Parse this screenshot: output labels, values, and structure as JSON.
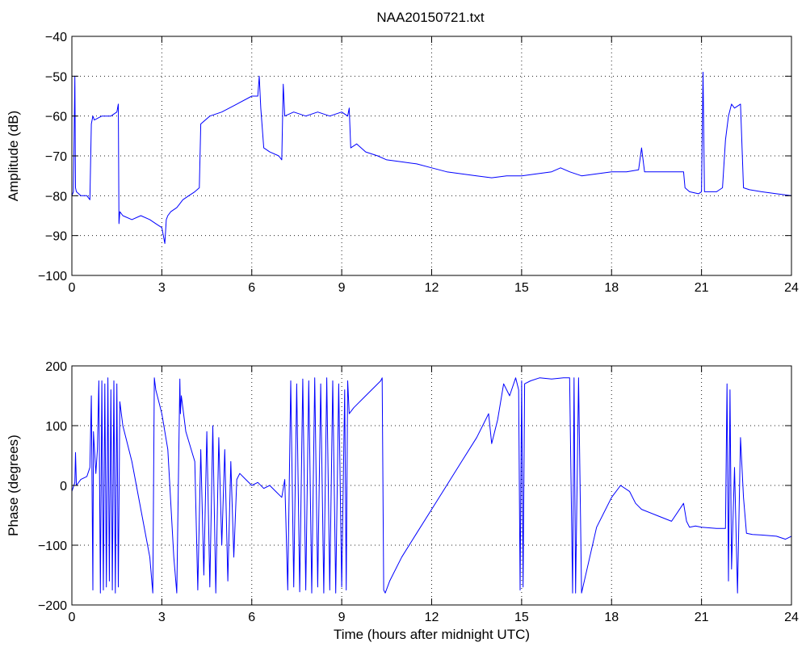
{
  "figure": {
    "title": "NAA20150721.txt"
  },
  "chart_data": [
    {
      "type": "line",
      "title": "NAA20150721.txt",
      "xlabel": "",
      "ylabel": "Amplitude (dB)",
      "xlim": [
        0,
        24
      ],
      "ylim": [
        -100,
        -40
      ],
      "xticks": [
        0,
        3,
        6,
        9,
        12,
        15,
        18,
        21,
        24
      ],
      "yticks": [
        -100,
        -90,
        -80,
        -70,
        -60,
        -50,
        -40
      ],
      "grid": true,
      "series_color": "#0000ff",
      "series": [
        {
          "x": [
            0,
            0.05,
            0.1,
            0.12,
            0.15,
            0.3,
            0.5,
            0.6,
            0.65,
            0.7,
            0.75,
            1.0,
            1.3,
            1.5,
            1.55,
            1.57,
            1.6,
            1.7,
            2.0,
            2.3,
            2.6,
            2.8,
            3.0,
            3.1,
            3.15,
            3.2,
            3.3,
            3.5,
            3.6,
            3.7,
            3.9,
            4.1,
            4.25,
            4.3,
            4.6,
            5.0,
            5.5,
            6.0,
            6.2,
            6.25,
            6.3,
            6.4,
            6.6,
            6.9,
            7.0,
            7.05,
            7.1,
            7.4,
            7.8,
            8.2,
            8.6,
            9.0,
            9.2,
            9.25,
            9.3,
            9.5,
            9.8,
            10.2,
            10.5,
            11.0,
            11.5,
            12.0,
            12.5,
            13.0,
            13.5,
            14.0,
            14.5,
            15.0,
            15.5,
            16.0,
            16.3,
            16.6,
            17.0,
            17.5,
            18.0,
            18.5,
            18.9,
            19.0,
            19.1,
            19.5,
            20.0,
            20.4,
            20.45,
            20.6,
            20.9,
            21.0,
            21.05,
            21.1,
            21.3,
            21.5,
            21.7,
            21.8,
            21.9,
            22.0,
            22.1,
            22.3,
            22.4,
            22.6,
            23.0,
            23.5,
            24.0
          ],
          "y": [
            -80,
            -79,
            -50,
            -78,
            -79,
            -80,
            -80,
            -81,
            -62,
            -60,
            -61,
            -60,
            -60,
            -59,
            -57,
            -87,
            -84,
            -85,
            -86,
            -85,
            -86,
            -87,
            -88,
            -92,
            -86,
            -85,
            -84,
            -83,
            -82,
            -81,
            -80,
            -79,
            -78,
            -62,
            -60,
            -59,
            -57,
            -55,
            -55,
            -50,
            -58,
            -68,
            -69,
            -70,
            -71,
            -52,
            -60,
            -59,
            -60,
            -59,
            -60,
            -59,
            -60,
            -58,
            -68,
            -67,
            -69,
            -70,
            -71,
            -71.5,
            -72,
            -73,
            -74,
            -74.5,
            -75,
            -75.5,
            -75,
            -75,
            -74.5,
            -74,
            -73,
            -74,
            -75,
            -74.5,
            -74,
            -74,
            -73.5,
            -68,
            -74,
            -74,
            -74,
            -74,
            -78,
            -79,
            -79.5,
            -79,
            -49,
            -79,
            -79,
            -79,
            -78,
            -66,
            -60,
            -57,
            -58,
            -57,
            -78,
            -78.5,
            -79,
            -79.5,
            -80
          ]
        }
      ]
    },
    {
      "type": "line",
      "title": "",
      "xlabel": "Time (hours after midnight UTC)",
      "ylabel": "Phase (degrees)",
      "xlim": [
        0,
        24
      ],
      "ylim": [
        -200,
        200
      ],
      "xticks": [
        0,
        3,
        6,
        9,
        12,
        15,
        18,
        21,
        24
      ],
      "yticks": [
        -200,
        -100,
        0,
        100,
        200
      ],
      "grid": true,
      "series_color": "#0000ff",
      "series": [
        {
          "x": [
            0,
            0.1,
            0.12,
            0.15,
            0.3,
            0.5,
            0.6,
            0.65,
            0.7,
            0.72,
            0.8,
            0.85,
            0.9,
            0.95,
            1.0,
            1.05,
            1.1,
            1.15,
            1.2,
            1.25,
            1.3,
            1.35,
            1.4,
            1.45,
            1.5,
            1.55,
            1.6,
            1.7,
            2.0,
            2.3,
            2.6,
            2.7,
            2.75,
            2.8,
            3.0,
            3.2,
            3.4,
            3.5,
            3.6,
            3.62,
            3.65,
            3.7,
            3.8,
            4.1,
            4.2,
            4.3,
            4.4,
            4.5,
            4.6,
            4.7,
            4.8,
            4.9,
            5.0,
            5.1,
            5.2,
            5.3,
            5.4,
            5.5,
            5.6,
            5.8,
            6.0,
            6.2,
            6.4,
            6.6,
            6.8,
            7.0,
            7.1,
            7.2,
            7.3,
            7.4,
            7.5,
            7.6,
            7.7,
            7.8,
            7.9,
            8.0,
            8.1,
            8.2,
            8.3,
            8.4,
            8.5,
            8.6,
            8.7,
            8.8,
            8.9,
            9.0,
            9.1,
            9.15,
            9.2,
            9.25,
            9.4,
            9.8,
            10.1,
            10.3,
            10.35,
            10.4,
            10.45,
            10.6,
            11.0,
            11.5,
            12.0,
            12.5,
            13.0,
            13.5,
            13.8,
            13.9,
            14.0,
            14.2,
            14.4,
            14.6,
            14.8,
            14.9,
            14.95,
            15.0,
            15.05,
            15.1,
            15.3,
            15.6,
            16.0,
            16.4,
            16.6,
            16.7,
            16.75,
            16.8,
            16.9,
            17.0,
            17.5,
            18.0,
            18.3,
            18.6,
            18.8,
            19.0,
            19.5,
            20.0,
            20.4,
            20.5,
            20.6,
            20.8,
            21.0,
            21.5,
            21.8,
            21.85,
            21.9,
            21.95,
            22.0,
            22.1,
            22.2,
            22.3,
            22.4,
            22.5,
            22.7,
            23.0,
            23.5,
            23.8,
            24.0
          ],
          "y": [
            -10,
            5,
            55,
            0,
            10,
            15,
            30,
            150,
            -175,
            90,
            20,
            60,
            175,
            -180,
            175,
            -175,
            170,
            -170,
            180,
            -160,
            160,
            -175,
            175,
            -180,
            170,
            -170,
            140,
            100,
            40,
            -40,
            -120,
            -180,
            180,
            160,
            120,
            60,
            -120,
            -180,
            178,
            120,
            150,
            130,
            90,
            40,
            -175,
            60,
            -150,
            90,
            -170,
            100,
            -180,
            80,
            -100,
            60,
            -160,
            40,
            -120,
            10,
            20,
            10,
            0,
            5,
            -5,
            0,
            -10,
            -20,
            10,
            -175,
            175,
            -170,
            170,
            -178,
            178,
            -175,
            175,
            -180,
            180,
            -170,
            170,
            -180,
            180,
            -175,
            175,
            -180,
            170,
            -170,
            160,
            -175,
            175,
            120,
            130,
            150,
            165,
            175,
            180,
            -175,
            -180,
            -160,
            -120,
            -80,
            -40,
            0,
            40,
            80,
            110,
            120,
            70,
            110,
            170,
            150,
            180,
            160,
            -175,
            175,
            -170,
            170,
            175,
            180,
            178,
            180,
            180,
            -180,
            180,
            -180,
            180,
            -180,
            -70,
            -20,
            0,
            -10,
            -30,
            -40,
            -50,
            -60,
            -30,
            -60,
            -70,
            -68,
            -70,
            -72,
            -72,
            170,
            -160,
            160,
            -140,
            30,
            -180,
            80,
            -20,
            -80,
            -82,
            -83,
            -85,
            -90,
            -85
          ]
        }
      ]
    }
  ]
}
